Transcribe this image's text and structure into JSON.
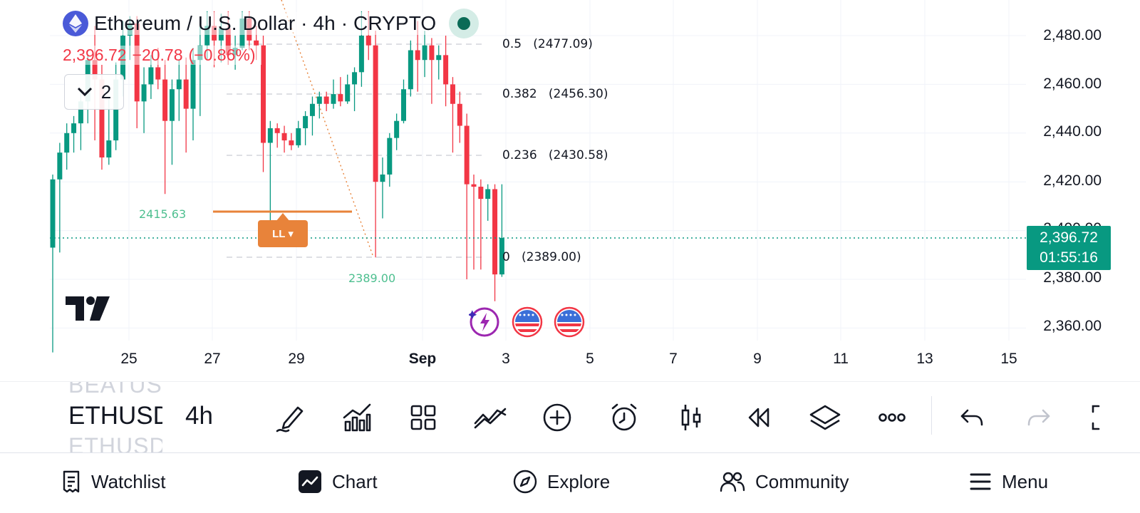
{
  "header": {
    "symbol_title": "Ethereum / U.S. Dollar · 4h · CRYPTO",
    "last_price": "2,396.72",
    "change": "−20.78",
    "change_pct": "(−0.86%)",
    "indicator_count": "2"
  },
  "price_axis": {
    "labels": [
      "2,480.00",
      "2,460.00",
      "2,440.00",
      "2,420.00",
      "2,400.00",
      "2,380.00",
      "2,360.00"
    ],
    "current_price": "2,396.72",
    "countdown": "01:55:16"
  },
  "time_axis": {
    "labels": [
      "25",
      "27",
      "29",
      "Sep",
      "3",
      "5",
      "7",
      "9",
      "11",
      "13",
      "15"
    ]
  },
  "fibonacci": {
    "levels": [
      {
        "ratio": "0.5",
        "price": "(2477.09)"
      },
      {
        "ratio": "0.382",
        "price": "(2456.30)"
      },
      {
        "ratio": "0.236",
        "price": "(2430.58)"
      },
      {
        "ratio": "0",
        "price": "(2389.00)"
      }
    ]
  },
  "annotations": {
    "level_2415": "2415.63",
    "low_2389": "2389.00",
    "ll_badge": "LL ▾"
  },
  "toolbar": {
    "ticker_main": "ETHUSD",
    "ticker_above": "BEATUSD",
    "ticker_below": "ETHUSD",
    "interval": "4h"
  },
  "bottom_nav": {
    "watchlist": "Watchlist",
    "chart": "Chart",
    "explore": "Explore",
    "community": "Community",
    "menu": "Menu"
  },
  "colors": {
    "up": "#089981",
    "down": "#f23645",
    "fib_line": "#e8833a",
    "accent": "#089981"
  },
  "chart_data": {
    "type": "candlestick",
    "ylim": [
      2350,
      2490
    ],
    "candles": [
      [
        2393,
        2423,
        2350,
        2421
      ],
      [
        2421,
        2436,
        2391,
        2432
      ],
      [
        2432,
        2444,
        2425,
        2440
      ],
      [
        2440,
        2447,
        2432,
        2444
      ],
      [
        2444,
        2458,
        2433,
        2453
      ],
      [
        2453,
        2472,
        2444,
        2470
      ],
      [
        2470,
        2484,
        2437,
        2462
      ],
      [
        2462,
        2468,
        2425,
        2430
      ],
      [
        2430,
        2455,
        2427,
        2437
      ],
      [
        2437,
        2469,
        2433,
        2462
      ],
      [
        2462,
        2486,
        2455,
        2480
      ],
      [
        2480,
        2488,
        2470,
        2485
      ],
      [
        2485,
        2488,
        2442,
        2453
      ],
      [
        2453,
        2467,
        2440,
        2460
      ],
      [
        2460,
        2472,
        2454,
        2467
      ],
      [
        2467,
        2475,
        2458,
        2462
      ],
      [
        2462,
        2470,
        2415,
        2445
      ],
      [
        2445,
        2462,
        2427,
        2458
      ],
      [
        2458,
        2470,
        2445,
        2462
      ],
      [
        2462,
        2471,
        2432,
        2450
      ],
      [
        2450,
        2475,
        2437,
        2470
      ],
      [
        2470,
        2484,
        2447,
        2476
      ],
      [
        2476,
        2490,
        2470,
        2484
      ],
      [
        2484,
        2490,
        2467,
        2478
      ],
      [
        2478,
        2489,
        2469,
        2483
      ],
      [
        2483,
        2490,
        2468,
        2472
      ],
      [
        2472,
        2480,
        2466,
        2475
      ],
      [
        2475,
        2490,
        2474,
        2487
      ],
      [
        2487,
        2490,
        2474,
        2478
      ],
      [
        2478,
        2484,
        2470,
        2476
      ],
      [
        2476,
        2480,
        2424,
        2436
      ],
      [
        2436,
        2445,
        2404,
        2442
      ],
      [
        2442,
        2444,
        2434,
        2440
      ],
      [
        2440,
        2443,
        2432,
        2437
      ],
      [
        2437,
        2440,
        2433,
        2435
      ],
      [
        2435,
        2445,
        2434,
        2442
      ],
      [
        2442,
        2449,
        2435,
        2447
      ],
      [
        2447,
        2455,
        2439,
        2452
      ],
      [
        2452,
        2457,
        2446,
        2455
      ],
      [
        2455,
        2457,
        2449,
        2452
      ],
      [
        2452,
        2462,
        2450,
        2456
      ],
      [
        2456,
        2463,
        2451,
        2453
      ],
      [
        2453,
        2464,
        2452,
        2460
      ],
      [
        2460,
        2467,
        2449,
        2465
      ],
      [
        2465,
        2490,
        2459,
        2480
      ],
      [
        2480,
        2490,
        2470,
        2476
      ],
      [
        2476,
        2482,
        2389,
        2420
      ],
      [
        2420,
        2430,
        2405,
        2423
      ],
      [
        2423,
        2440,
        2418,
        2438
      ],
      [
        2438,
        2448,
        2433,
        2445
      ],
      [
        2445,
        2462,
        2444,
        2458
      ],
      [
        2458,
        2478,
        2455,
        2474
      ],
      [
        2474,
        2486,
        2457,
        2470
      ],
      [
        2470,
        2482,
        2463,
        2476
      ],
      [
        2476,
        2479,
        2452,
        2470
      ],
      [
        2470,
        2476,
        2462,
        2472
      ],
      [
        2472,
        2480,
        2451,
        2460
      ],
      [
        2460,
        2463,
        2432,
        2452
      ],
      [
        2452,
        2457,
        2436,
        2443
      ],
      [
        2443,
        2448,
        2380,
        2419
      ],
      [
        2419,
        2423,
        2384,
        2418
      ],
      [
        2418,
        2421,
        2384,
        2413
      ],
      [
        2413,
        2419,
        2404,
        2417
      ],
      [
        2417,
        2419,
        2371,
        2382
      ],
      [
        2382,
        2419,
        2381,
        2397
      ]
    ]
  }
}
